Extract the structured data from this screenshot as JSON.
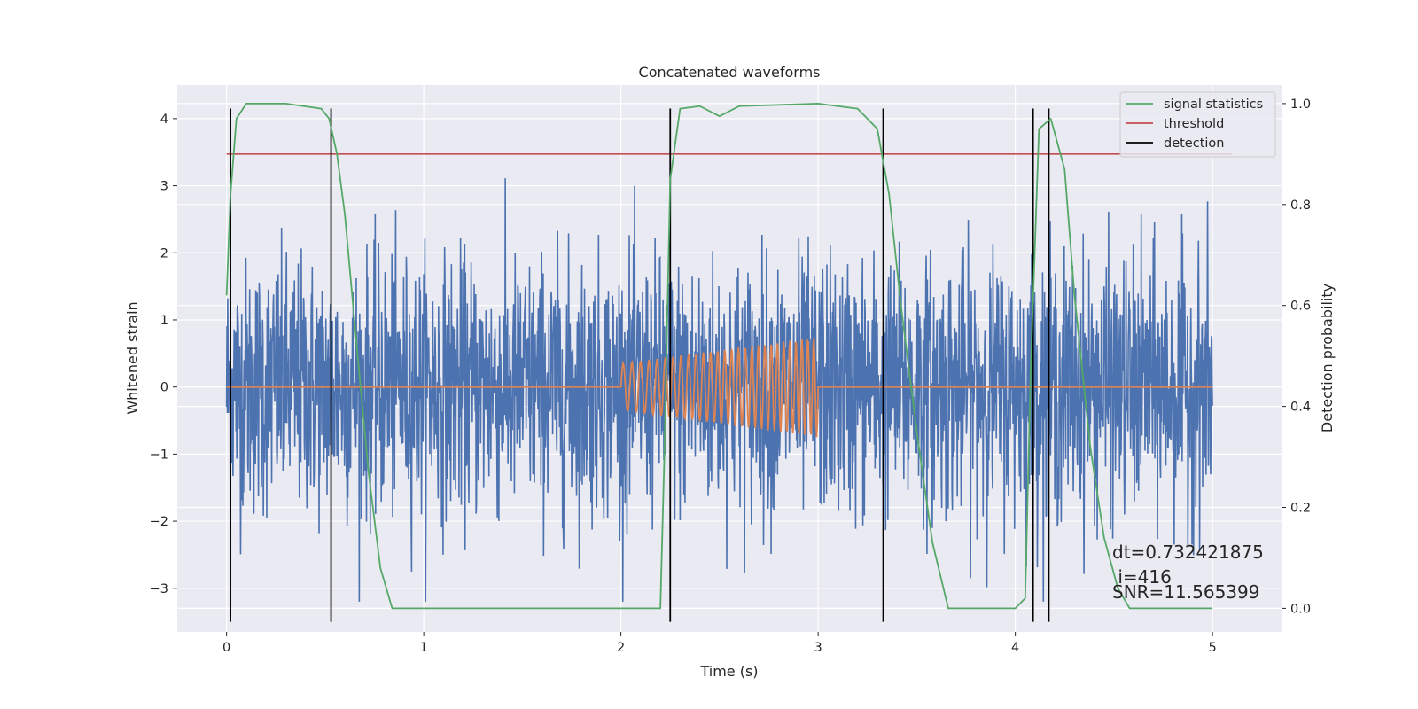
{
  "chart_data": {
    "type": "line",
    "title": "Concatenated waveforms",
    "xlabel": "Time (s)",
    "ylabel": "Whitened strain",
    "ylabel_right": "Detection probability",
    "xlim": [
      -0.25,
      5.35
    ],
    "ylim": [
      -3.65,
      4.5
    ],
    "ylim_right": [
      -0.0467,
      1.0367
    ],
    "x_ticks": [
      0,
      1,
      2,
      3,
      4,
      5
    ],
    "x_tick_labels": [
      "0",
      "1",
      "2",
      "3",
      "4",
      "5"
    ],
    "y_ticks": [
      4,
      3,
      2,
      1,
      0,
      -1,
      -2,
      -3
    ],
    "y_tick_labels": [
      "4",
      "3",
      "2",
      "1",
      "0",
      "−1",
      "−2",
      "−3"
    ],
    "y_right_ticks": [
      1.0,
      0.8,
      0.6,
      0.4,
      0.2,
      0.0
    ],
    "y_right_tick_labels": [
      "1.0",
      "0.8",
      "0.6",
      "0.4",
      "0.2",
      "0.0"
    ],
    "grid": true,
    "legend_position": "top-right",
    "style": "seaborn darkgrid",
    "colors": {
      "plot_background": "#eaeaf2",
      "grid": "#ffffff",
      "strain": "#4c72b0",
      "injected_signal": "#dd8452",
      "signal_statistics": "#55a868",
      "threshold": "#c44e52",
      "detection": "#000000"
    },
    "series": [
      {
        "name": "",
        "role": "whitened strain noise",
        "axis": "left",
        "x_range": [
          0,
          5
        ],
        "amplitude_range": [
          -3.2,
          3.4
        ]
      },
      {
        "name": "",
        "role": "injected chirp signal",
        "axis": "left",
        "x": [
          0,
          2.0,
          2.0,
          3.0,
          3.0,
          5.0
        ],
        "y_envelope": [
          0,
          0,
          0.35,
          0.75,
          0,
          0
        ]
      },
      {
        "name": "signal statistics",
        "axis": "right",
        "x": [
          0.0,
          0.02,
          0.05,
          0.1,
          0.3,
          0.48,
          0.52,
          0.56,
          0.6,
          0.66,
          0.72,
          0.78,
          0.84,
          1.2,
          2.2,
          2.22,
          2.25,
          2.3,
          2.4,
          2.5,
          2.6,
          3.0,
          3.2,
          3.3,
          3.36,
          3.42,
          3.5,
          3.58,
          3.66,
          4.0,
          4.05,
          4.08,
          4.12,
          4.18,
          4.25,
          4.3,
          4.38,
          4.45,
          4.52,
          4.58,
          5.0
        ],
        "y": [
          0.62,
          0.82,
          0.97,
          1.0,
          1.0,
          0.99,
          0.97,
          0.9,
          0.78,
          0.52,
          0.27,
          0.08,
          0.0,
          0.0,
          0.0,
          0.3,
          0.85,
          0.99,
          0.995,
          0.975,
          0.995,
          1.0,
          0.99,
          0.95,
          0.82,
          0.6,
          0.35,
          0.13,
          0.0,
          0.0,
          0.02,
          0.5,
          0.95,
          0.97,
          0.87,
          0.62,
          0.32,
          0.14,
          0.04,
          0.0,
          0.0
        ]
      },
      {
        "name": "threshold",
        "axis": "right",
        "x": [
          0,
          5.1
        ],
        "y": [
          0.9,
          0.9
        ]
      },
      {
        "name": "detection",
        "axis": "left",
        "type": "vlines",
        "x": [
          0.02,
          0.53,
          2.25,
          3.33,
          4.09,
          4.17
        ],
        "y_range": [
          -3.5,
          4.15
        ]
      }
    ],
    "annotations": [
      "dt=0.732421875",
      " i=416",
      "SNR=11.565399"
    ]
  }
}
